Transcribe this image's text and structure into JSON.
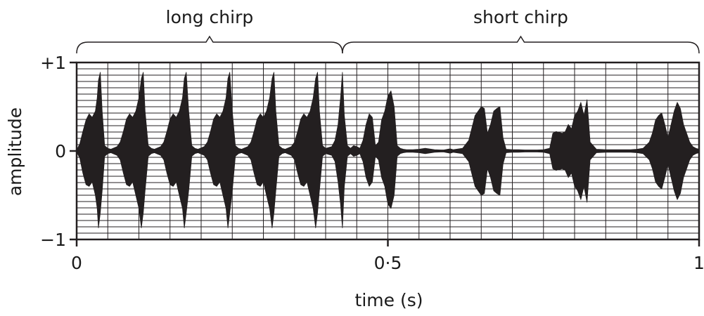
{
  "chart_data": {
    "type": "area",
    "title": "",
    "xlabel": "time (s)",
    "ylabel": "amplitude",
    "xlim": [
      0,
      1
    ],
    "ylim": [
      -1,
      1
    ],
    "grid": true,
    "x_ticks": [
      {
        "value": 0,
        "label": "0"
      },
      {
        "value": 0.5,
        "label": "0·5"
      },
      {
        "value": 1,
        "label": "1"
      }
    ],
    "y_ticks": [
      {
        "value": 1,
        "label": "+1"
      },
      {
        "value": 0,
        "label": "0"
      },
      {
        "value": -1,
        "label": "−1"
      }
    ],
    "annotations": [
      {
        "label": "long chirp",
        "x_start": 0,
        "x_end": 0.427
      },
      {
        "label": "short chirp",
        "x_start": 0.427,
        "x_end": 1
      }
    ],
    "waveform_color": "#231f20",
    "series": [
      {
        "x": [
          0,
          0.005,
          0.01,
          0.015,
          0.02,
          0.025,
          0.03,
          0.033,
          0.035,
          0.038,
          0.041,
          0.045,
          0.05,
          0.055,
          0.065,
          0.07,
          0.075,
          0.08,
          0.085,
          0.09,
          0.095,
          0.1,
          0.104,
          0.107,
          0.11,
          0.115,
          0.12,
          0.125,
          0.135,
          0.14,
          0.145,
          0.15,
          0.155,
          0.16,
          0.165,
          0.17,
          0.173,
          0.176,
          0.18,
          0.185,
          0.19,
          0.195,
          0.205,
          0.21,
          0.215,
          0.22,
          0.225,
          0.23,
          0.235,
          0.24,
          0.243,
          0.246,
          0.25,
          0.255,
          0.26,
          0.265,
          0.275,
          0.28,
          0.285,
          0.29,
          0.295,
          0.3,
          0.305,
          0.31,
          0.314,
          0.317,
          0.32,
          0.325,
          0.33,
          0.335,
          0.345,
          0.35,
          0.355,
          0.36,
          0.365,
          0.37,
          0.375,
          0.38,
          0.384,
          0.387,
          0.39,
          0.395,
          0.4,
          0.41,
          0.415,
          0.42,
          0.424,
          0.427,
          0.43,
          0.435,
          0.44,
          0.445,
          0.45,
          0.455,
          0.46,
          0.465,
          0.47,
          0.475,
          0.48,
          0.485,
          0.49,
          0.495,
          0.5,
          0.505,
          0.51,
          0.515,
          0.52,
          0.525,
          0.53,
          0.535,
          0.54,
          0.55,
          0.56,
          0.575,
          0.585,
          0.59,
          0.6,
          0.605,
          0.62,
          0.63,
          0.64,
          0.65,
          0.655,
          0.66,
          0.665,
          0.67,
          0.675,
          0.68,
          0.685,
          0.69,
          0.7,
          0.71,
          0.72,
          0.73,
          0.74,
          0.75,
          0.76,
          0.765,
          0.77,
          0.78,
          0.785,
          0.79,
          0.795,
          0.8,
          0.805,
          0.81,
          0.815,
          0.82,
          0.825,
          0.835,
          0.85,
          0.86,
          0.87,
          0.88,
          0.89,
          0.9,
          0.91,
          0.92,
          0.925,
          0.93,
          0.935,
          0.94,
          0.945,
          0.95,
          0.955,
          0.96,
          0.965,
          0.97,
          0.975,
          0.98,
          0.985,
          0.99,
          0.995,
          1
        ],
        "upper": [
          0.01,
          0.08,
          0.22,
          0.35,
          0.42,
          0.38,
          0.45,
          0.6,
          0.8,
          0.89,
          0.45,
          0.06,
          0.03,
          0.02,
          0.05,
          0.1,
          0.22,
          0.36,
          0.42,
          0.38,
          0.45,
          0.6,
          0.82,
          0.89,
          0.45,
          0.06,
          0.03,
          0.02,
          0.05,
          0.1,
          0.22,
          0.36,
          0.42,
          0.38,
          0.45,
          0.6,
          0.82,
          0.89,
          0.45,
          0.06,
          0.03,
          0.02,
          0.05,
          0.1,
          0.22,
          0.36,
          0.42,
          0.38,
          0.45,
          0.6,
          0.82,
          0.89,
          0.45,
          0.06,
          0.03,
          0.02,
          0.05,
          0.1,
          0.22,
          0.36,
          0.42,
          0.38,
          0.45,
          0.6,
          0.82,
          0.89,
          0.45,
          0.06,
          0.03,
          0.02,
          0.05,
          0.1,
          0.22,
          0.36,
          0.42,
          0.38,
          0.45,
          0.6,
          0.82,
          0.89,
          0.45,
          0.06,
          0.03,
          0.05,
          0.12,
          0.3,
          0.6,
          0.89,
          0.4,
          0.06,
          0.03,
          0.06,
          0.05,
          0.03,
          0.12,
          0.3,
          0.42,
          0.38,
          0.06,
          0.1,
          0.35,
          0.45,
          0.62,
          0.68,
          0.5,
          0.06,
          0.03,
          0.02,
          0.015,
          0.015,
          0.015,
          0.02,
          0.03,
          0.015,
          0.012,
          0.012,
          0.025,
          0.015,
          0.03,
          0.12,
          0.4,
          0.5,
          0.48,
          0.2,
          0.3,
          0.45,
          0.48,
          0.5,
          0.15,
          0.02,
          0.015,
          0.015,
          0.012,
          0.012,
          0.012,
          0.015,
          0.03,
          0.2,
          0.22,
          0.2,
          0.22,
          0.3,
          0.25,
          0.4,
          0.45,
          0.55,
          0.4,
          0.58,
          0.1,
          0.02,
          0.015,
          0.015,
          0.015,
          0.015,
          0.015,
          0.02,
          0.03,
          0.1,
          0.2,
          0.35,
          0.4,
          0.43,
          0.3,
          0.15,
          0.3,
          0.45,
          0.55,
          0.48,
          0.3,
          0.2,
          0.1,
          0.05,
          0.03,
          0.02
        ],
        "lower": [
          -0.01,
          -0.08,
          -0.25,
          -0.38,
          -0.4,
          -0.35,
          -0.5,
          -0.65,
          -0.87,
          -0.7,
          -0.45,
          -0.06,
          -0.03,
          -0.02,
          -0.05,
          -0.1,
          -0.25,
          -0.38,
          -0.4,
          -0.35,
          -0.5,
          -0.65,
          -0.87,
          -0.7,
          -0.45,
          -0.06,
          -0.03,
          -0.02,
          -0.05,
          -0.1,
          -0.25,
          -0.38,
          -0.4,
          -0.35,
          -0.5,
          -0.65,
          -0.87,
          -0.7,
          -0.45,
          -0.06,
          -0.03,
          -0.02,
          -0.05,
          -0.1,
          -0.25,
          -0.38,
          -0.4,
          -0.35,
          -0.5,
          -0.65,
          -0.87,
          -0.7,
          -0.45,
          -0.06,
          -0.03,
          -0.02,
          -0.05,
          -0.1,
          -0.25,
          -0.38,
          -0.4,
          -0.35,
          -0.5,
          -0.65,
          -0.87,
          -0.7,
          -0.45,
          -0.06,
          -0.03,
          -0.02,
          -0.05,
          -0.1,
          -0.25,
          -0.38,
          -0.4,
          -0.35,
          -0.5,
          -0.65,
          -0.87,
          -0.7,
          -0.45,
          -0.06,
          -0.03,
          -0.05,
          -0.12,
          -0.35,
          -0.6,
          -0.87,
          -0.4,
          -0.06,
          -0.03,
          -0.06,
          -0.05,
          -0.03,
          -0.12,
          -0.3,
          -0.4,
          -0.35,
          -0.06,
          -0.1,
          -0.3,
          -0.4,
          -0.6,
          -0.65,
          -0.5,
          -0.06,
          -0.03,
          -0.02,
          -0.015,
          -0.015,
          -0.015,
          -0.02,
          -0.03,
          -0.015,
          -0.012,
          -0.012,
          -0.025,
          -0.015,
          -0.03,
          -0.12,
          -0.4,
          -0.5,
          -0.48,
          -0.2,
          -0.3,
          -0.45,
          -0.48,
          -0.5,
          -0.15,
          -0.02,
          -0.015,
          -0.015,
          -0.012,
          -0.012,
          -0.012,
          -0.015,
          -0.03,
          -0.2,
          -0.22,
          -0.2,
          -0.22,
          -0.3,
          -0.25,
          -0.4,
          -0.45,
          -0.55,
          -0.4,
          -0.58,
          -0.1,
          -0.02,
          -0.015,
          -0.015,
          -0.015,
          -0.015,
          -0.015,
          -0.02,
          -0.03,
          -0.1,
          -0.2,
          -0.35,
          -0.4,
          -0.43,
          -0.3,
          -0.15,
          -0.3,
          -0.45,
          -0.55,
          -0.48,
          -0.3,
          -0.2,
          -0.1,
          -0.05,
          -0.03,
          -0.02
        ]
      }
    ]
  }
}
